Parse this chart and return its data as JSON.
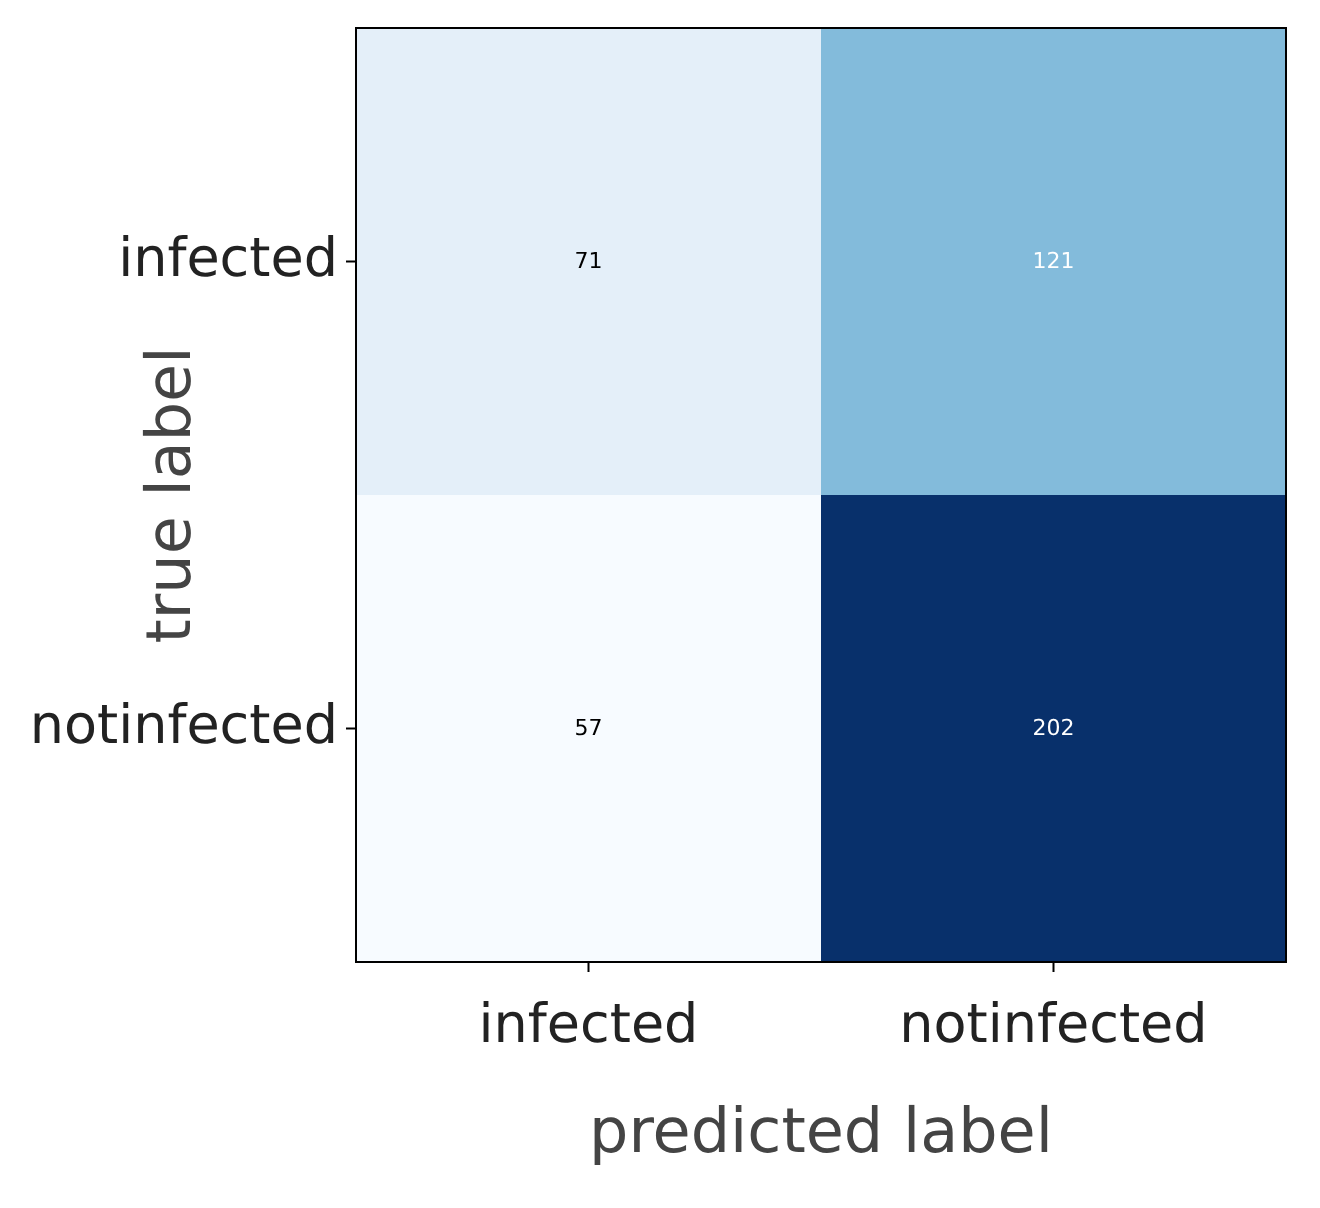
{
  "chart_data": {
    "type": "heatmap",
    "xlabel": "predicted label",
    "ylabel": "true label",
    "categories": [
      "infected",
      "notinfected"
    ],
    "y_categories": [
      "infected",
      "notinfected"
    ],
    "data_labels": true,
    "cells": [
      [
        71,
        121
      ],
      [
        57,
        202
      ]
    ]
  }
}
